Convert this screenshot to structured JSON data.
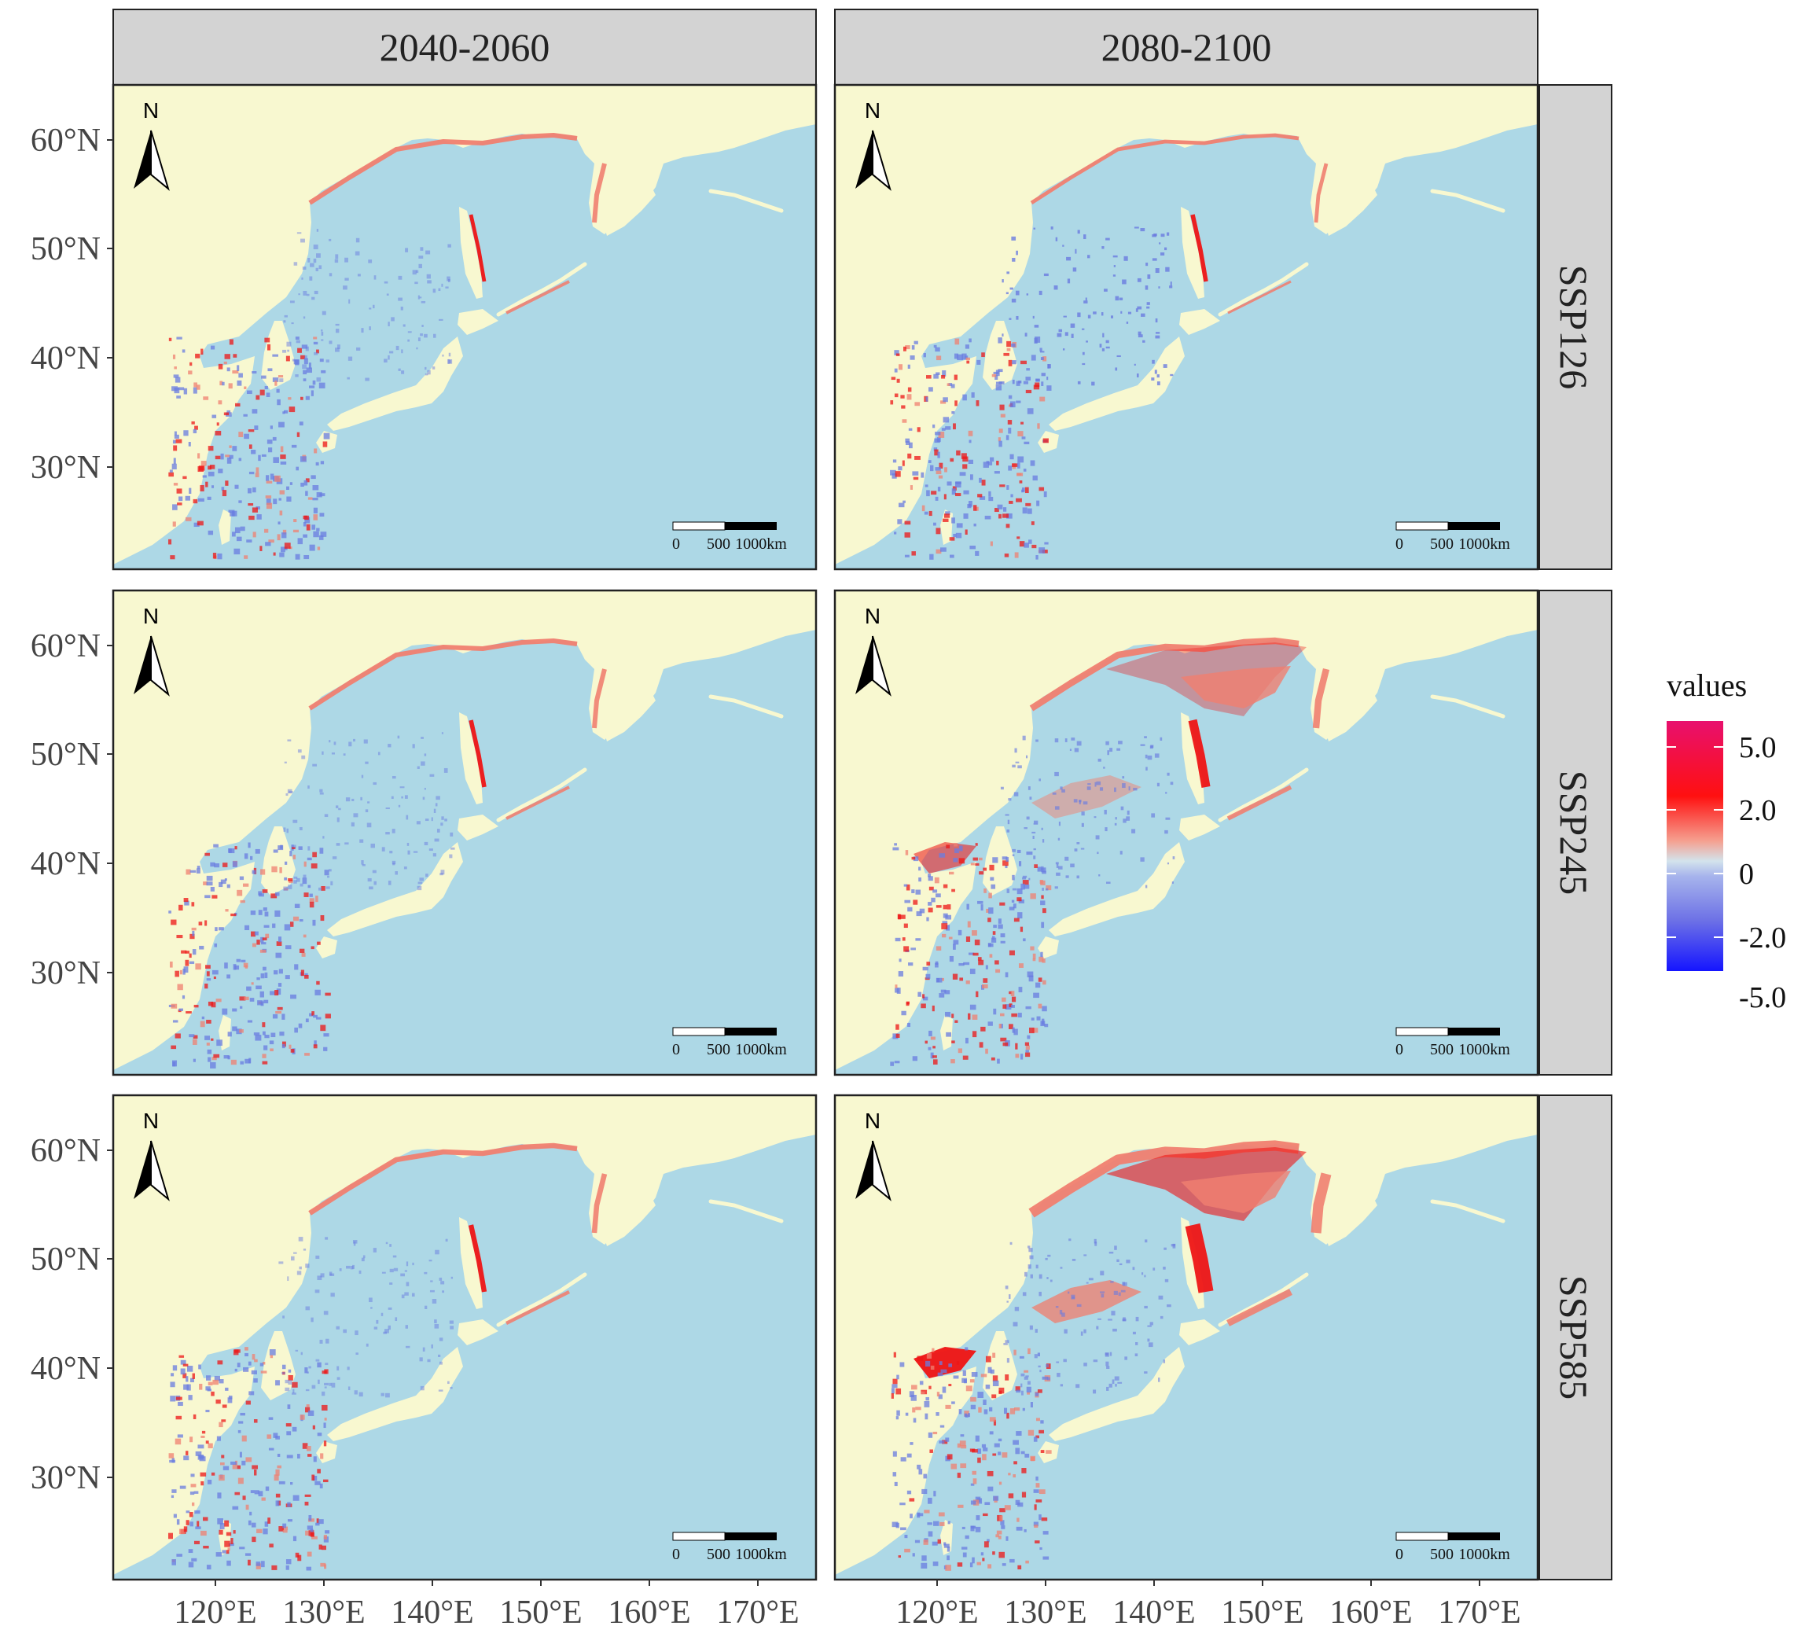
{
  "columns": [
    "2040-2060",
    "2080-2100"
  ],
  "rows": [
    "SSP126",
    "SSP245",
    "SSP585"
  ],
  "x_axis": {
    "ticks": [
      "120°E",
      "130°E",
      "140°E",
      "150°E",
      "160°E",
      "170°E"
    ]
  },
  "y_axis": {
    "ticks": [
      "60°N",
      "50°N",
      "40°N",
      "30°N"
    ]
  },
  "north_arrow_label": "N",
  "scale_bar": {
    "labels": [
      "0",
      "500",
      "1000km"
    ]
  },
  "legend": {
    "title": "values",
    "labels": [
      "5.0",
      "2.0",
      "0",
      "-2.0",
      "-5.0"
    ],
    "colors": [
      "#e8106e",
      "#ff1010",
      "#d3e3ec",
      "#6c70e6",
      "#1515ff"
    ]
  },
  "colors": {
    "land": "#f8f8d0",
    "sea": "#add8e6",
    "strip": "#d3d3d3",
    "gain": "#f08070",
    "strong_gain": "#ee1515",
    "loss": "#6a7ce0"
  }
}
